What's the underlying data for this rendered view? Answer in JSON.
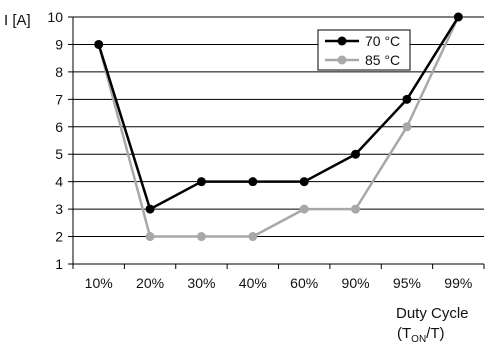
{
  "chart_data": {
    "type": "line",
    "ylabel": "I [A]",
    "xlabel": {
      "line1": "Duty Cycle",
      "line2_prefix": "(T",
      "line2_sub": "ON",
      "line2_suffix": "/T)"
    },
    "categories": [
      "10%",
      "20%",
      "30%",
      "40%",
      "60%",
      "90%",
      "95%",
      "99%"
    ],
    "y_ticks": [
      1,
      2,
      3,
      4,
      5,
      6,
      7,
      8,
      9,
      10
    ],
    "ylim": [
      1,
      10
    ],
    "grid": "horizontal",
    "legend_position": "top-right",
    "series": [
      {
        "name": "70 °C",
        "color": "#000000",
        "values": [
          9,
          3,
          4,
          4,
          4,
          5,
          7,
          10
        ]
      },
      {
        "name": "85 °C",
        "color": "#a8a8a8",
        "values": [
          9,
          2,
          2,
          2,
          3,
          3,
          6,
          10
        ]
      }
    ]
  }
}
